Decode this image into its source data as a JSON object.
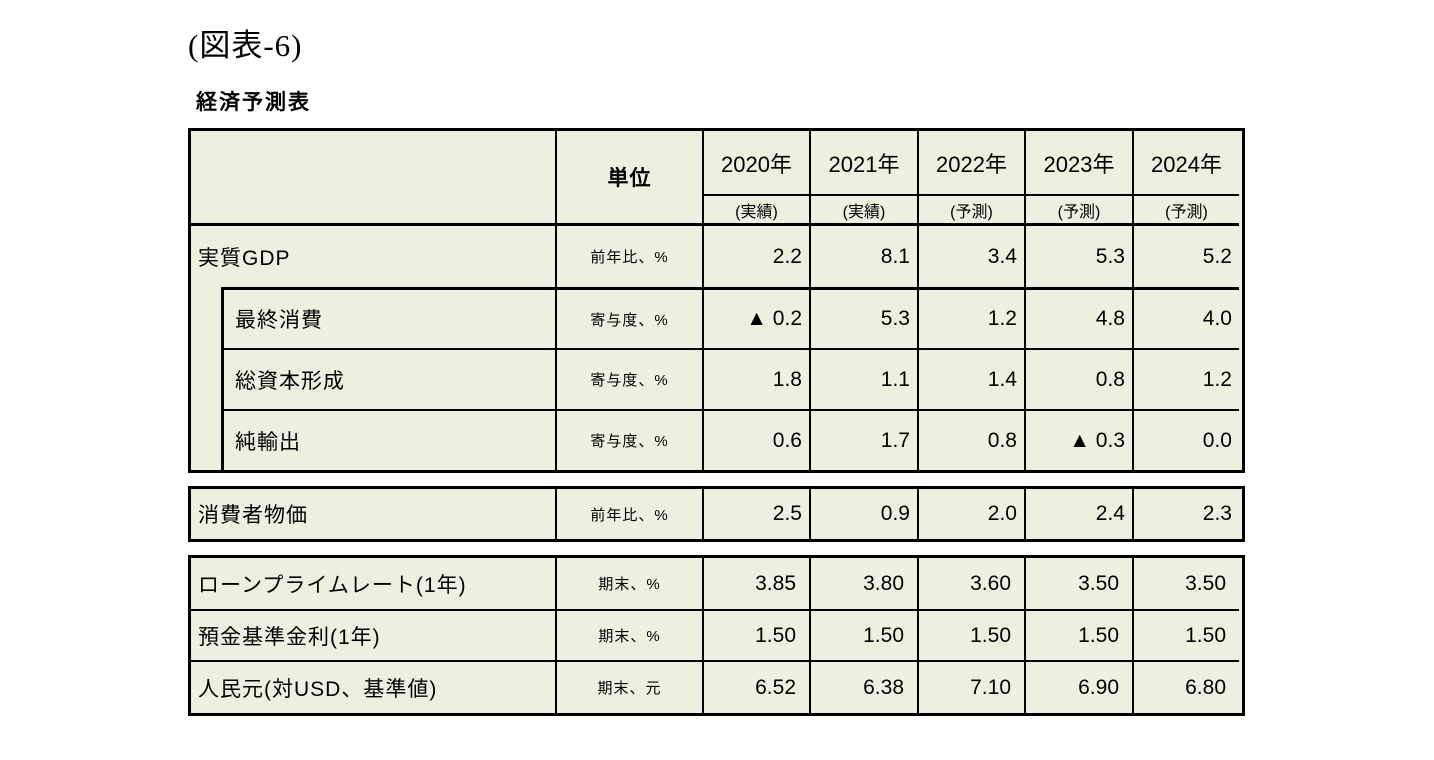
{
  "page": {
    "figure_label": "(図表-6)",
    "table_title": "経済予測表"
  },
  "colors": {
    "cell_bg": "#edf0df",
    "border": "#000000",
    "page_bg": "#ffffff"
  },
  "table": {
    "unit_header": "単位",
    "year_headers": [
      {
        "year": "2020年",
        "type": "(実績)"
      },
      {
        "year": "2021年",
        "type": "(実績)"
      },
      {
        "year": "2022年",
        "type": "(予測)"
      },
      {
        "year": "2023年",
        "type": "(予測)"
      },
      {
        "year": "2024年",
        "type": "(予測)"
      }
    ],
    "gdp_block": {
      "rows": [
        {
          "label": "実質GDP",
          "unit": "前年比、%",
          "values": [
            "2.2",
            "8.1",
            "3.4",
            "5.3",
            "5.2"
          ]
        },
        {
          "label": "最終消費",
          "unit": "寄与度、%",
          "values": [
            "▲ 0.2",
            "5.3",
            "1.2",
            "4.8",
            "4.0"
          ]
        },
        {
          "label": "総資本形成",
          "unit": "寄与度、%",
          "values": [
            "1.8",
            "1.1",
            "1.4",
            "0.8",
            "1.2"
          ]
        },
        {
          "label": "純輸出",
          "unit": "寄与度、%",
          "values": [
            "0.6",
            "1.7",
            "0.8",
            "▲ 0.3",
            "0.0"
          ]
        }
      ]
    },
    "cpi_block": {
      "rows": [
        {
          "label": "消費者物価",
          "unit": "前年比、%",
          "values": [
            "2.5",
            "0.9",
            "2.0",
            "2.4",
            "2.3"
          ]
        }
      ]
    },
    "rates_block": {
      "rows": [
        {
          "label": "ローンプライムレート(1年)",
          "unit": "期末、%",
          "values": [
            "3.85",
            "3.80",
            "3.60",
            "3.50",
            "3.50"
          ]
        },
        {
          "label": "預金基準金利(1年)",
          "unit": "期末、%",
          "values": [
            "1.50",
            "1.50",
            "1.50",
            "1.50",
            "1.50"
          ]
        },
        {
          "label": "人民元(対USD、基準値)",
          "unit": "期末、元",
          "values": [
            "6.52",
            "6.38",
            "7.10",
            "6.90",
            "6.80"
          ]
        }
      ]
    }
  }
}
